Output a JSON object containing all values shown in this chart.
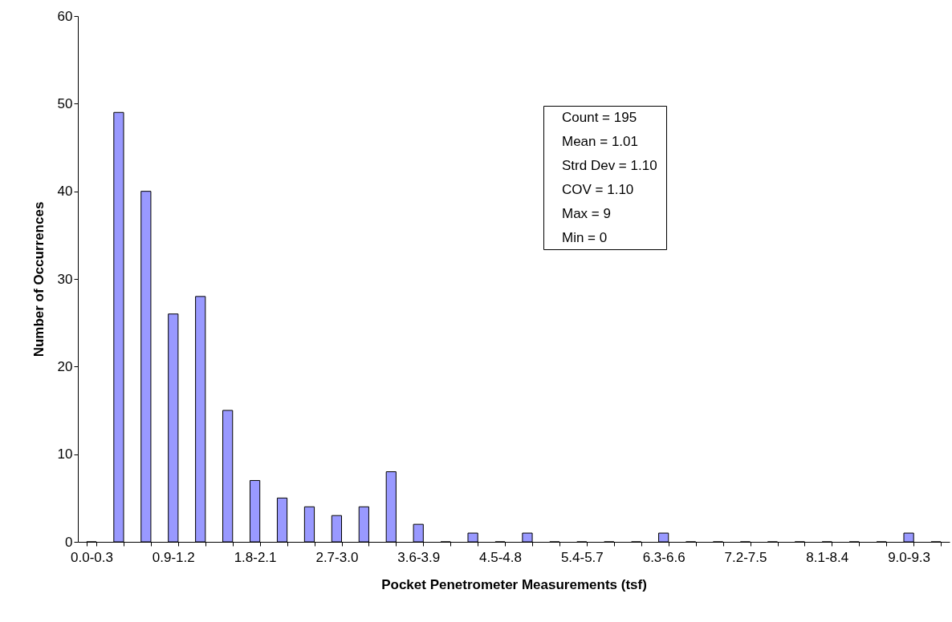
{
  "chart_data": {
    "type": "bar",
    "xlabel": "Pocket Penetrometer Measurements (tsf)",
    "ylabel": "Number of Occurrences",
    "categories": [
      "0.0-0.3",
      null,
      null,
      "0.9-1.2",
      null,
      null,
      "1.8-2.1",
      null,
      null,
      "2.7-3.0",
      null,
      null,
      "3.6-3.9",
      null,
      null,
      "4.5-4.8",
      null,
      null,
      "5.4-5.7",
      null,
      null,
      "6.3-6.6",
      null,
      null,
      "7.2-7.5",
      null,
      null,
      "8.1-8.4",
      null,
      null,
      "9.0-9.3",
      null
    ],
    "values": [
      0,
      49,
      40,
      26,
      28,
      15,
      7,
      5,
      4,
      3,
      4,
      8,
      2,
      0,
      1,
      0,
      1,
      0,
      0,
      0,
      0,
      1,
      0,
      0,
      0,
      0,
      0,
      0,
      0,
      0,
      1,
      0
    ],
    "color": "#9999ff",
    "ylim": [
      0,
      60
    ],
    "yticks": [
      0,
      10,
      20,
      30,
      40,
      50,
      60
    ],
    "grid": false,
    "annotations": [
      "Count =  195",
      "Mean =  1.01",
      "Strd Dev =  1.10",
      "COV =  1.10",
      "Max =  9",
      "Min =  0"
    ]
  }
}
